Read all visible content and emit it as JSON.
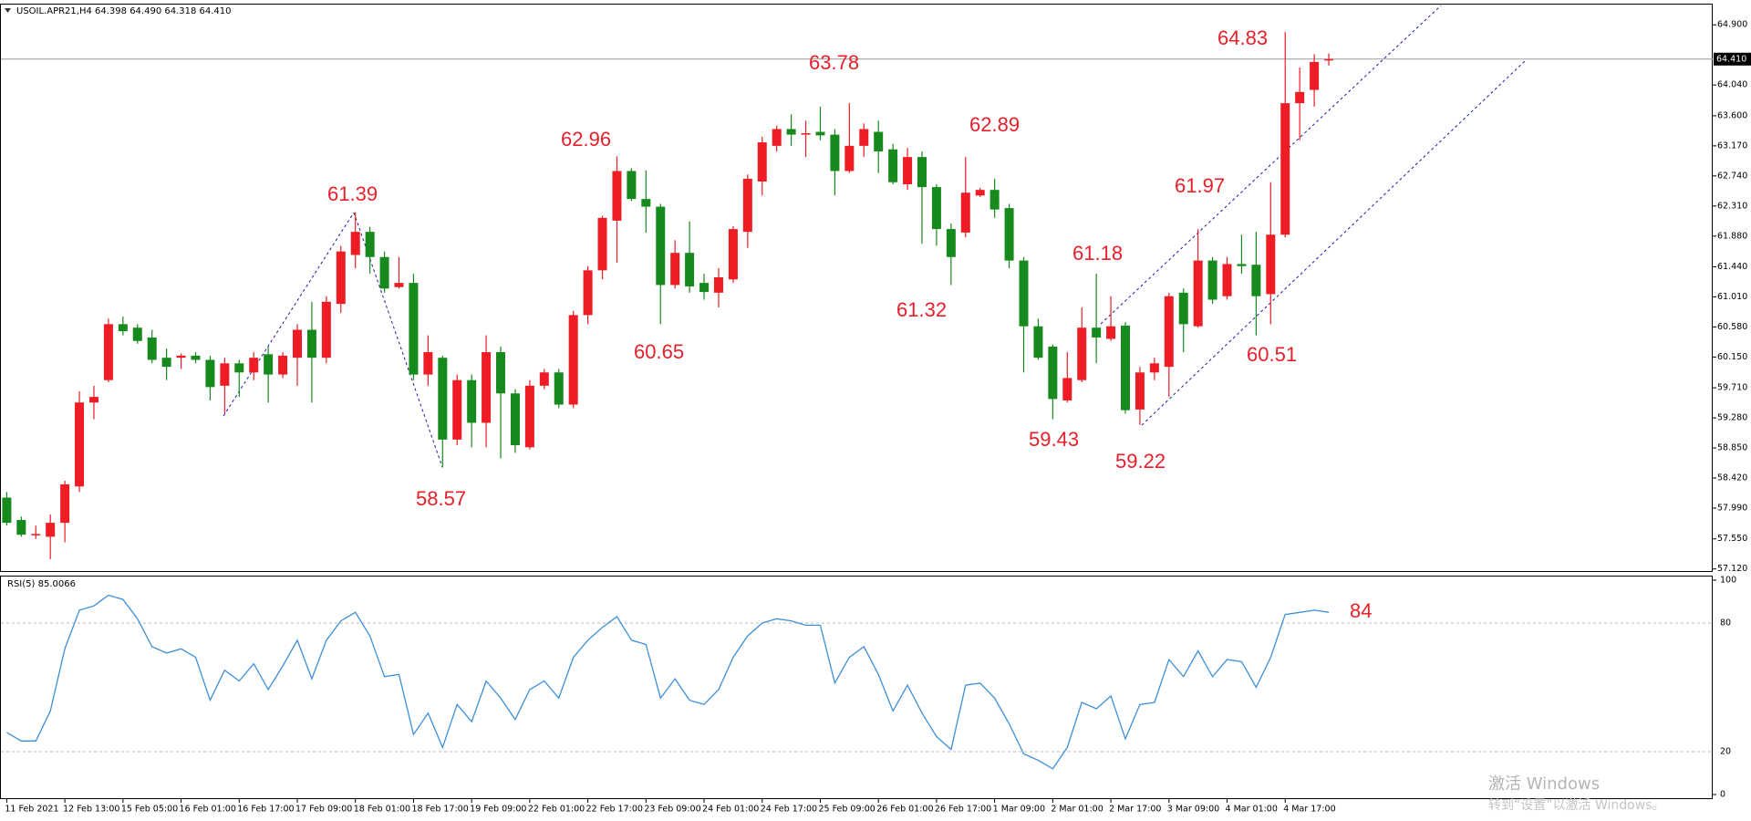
{
  "chart_data": [
    {
      "type": "candlestick",
      "title": "USOIL.APR21,H4  64.398 64.490 64.318 64.410",
      "categories": [
        "11 Feb 2021",
        null,
        null,
        null,
        "12 Feb 13:00",
        null,
        null,
        null,
        "15 Feb 05:00",
        null,
        null,
        null,
        "16 Feb 01:00",
        null,
        null,
        null,
        "16 Feb 17:00",
        null,
        null,
        null,
        "17 Feb 09:00",
        null,
        null,
        null,
        "18 Feb 01:00",
        null,
        null,
        null,
        "18 Feb 17:00",
        null,
        null,
        null,
        "19 Feb 09:00",
        null,
        null,
        null,
        "22 Feb 01:00",
        null,
        null,
        null,
        "22 Feb 17:00",
        null,
        null,
        null,
        "23 Feb 09:00",
        null,
        null,
        null,
        "24 Feb 01:00",
        null,
        null,
        null,
        "24 Feb 17:00",
        null,
        null,
        null,
        "25 Feb 09:00",
        null,
        null,
        null,
        "26 Feb 01:00",
        null,
        null,
        null,
        "26 Feb 17:00",
        null,
        null,
        null,
        "1 Mar 09:00",
        null,
        null,
        null,
        "2 Mar 01:00",
        null,
        null,
        null,
        "2 Mar 17:00",
        null,
        null,
        null,
        "3 Mar 09:00",
        null,
        null,
        null,
        "4 Mar 01:00",
        null,
        null,
        null,
        "4 Mar 17:00",
        null,
        null,
        null
      ],
      "open": [
        58.14,
        57.82,
        57.61,
        57.58,
        57.78,
        58.3,
        59.5,
        59.82,
        60.62,
        60.57,
        60.43,
        60.14,
        60.14,
        60.17,
        60.11,
        59.74,
        60.06,
        59.93,
        60.19,
        59.9,
        60.14,
        60.54,
        60.14,
        60.91,
        61.61,
        61.94,
        61.58,
        61.15,
        61.21,
        59.9,
        60.14,
        58.97,
        59.82,
        59.21,
        60.22,
        59.63,
        58.86,
        59.74,
        59.93,
        59.47,
        60.75,
        61.39,
        62.1,
        62.81,
        62.41,
        62.3,
        61.18,
        61.64,
        61.21,
        61.07,
        61.26,
        61.94,
        62.66,
        63.17,
        63.41,
        63.33,
        63.37,
        63.33,
        62.81,
        63.17,
        63.37,
        63.12,
        62.62,
        63.01,
        62.58,
        61.98,
        61.93,
        62.46,
        62.54,
        62.28,
        61.53,
        60.59,
        60.3,
        59.53,
        59.82,
        60.57,
        60.41,
        60.6,
        59.4,
        59.93,
        60.01,
        61.07,
        60.59,
        61.53,
        61.02,
        61.48,
        61.47,
        61.05,
        61.9,
        63.78,
        63.97,
        64.398
      ],
      "high": [
        58.22,
        57.87,
        57.74,
        57.9,
        58.38,
        59.66,
        59.74,
        60.7,
        60.73,
        60.62,
        60.54,
        60.27,
        60.2,
        60.22,
        60.17,
        60.14,
        60.11,
        60.22,
        60.3,
        60.22,
        60.62,
        60.94,
        61.02,
        61.74,
        62.22,
        62.01,
        61.66,
        61.58,
        61.34,
        60.46,
        60.17,
        59.9,
        59.9,
        60.46,
        60.3,
        59.69,
        59.82,
        59.98,
        59.98,
        60.81,
        61.45,
        62.17,
        63.02,
        62.85,
        62.82,
        62.34,
        61.82,
        62.09,
        61.34,
        61.42,
        62.02,
        62.76,
        63.3,
        63.46,
        63.62,
        63.53,
        63.73,
        63.41,
        63.78,
        63.49,
        63.53,
        63.2,
        63.14,
        63.09,
        62.62,
        62.06,
        63.01,
        62.57,
        62.7,
        62.34,
        61.58,
        60.7,
        60.33,
        60.22,
        60.86,
        61.34,
        61.02,
        60.65,
        60.01,
        60.14,
        61.07,
        61.13,
        61.98,
        61.58,
        61.58,
        61.9,
        61.94,
        62.65,
        64.8,
        64.29,
        64.48,
        64.49
      ],
      "low": [
        57.74,
        57.58,
        57.55,
        57.26,
        57.5,
        58.22,
        59.26,
        59.79,
        60.46,
        60.34,
        60.06,
        59.82,
        59.98,
        60.06,
        59.53,
        59.34,
        59.58,
        59.82,
        59.5,
        59.85,
        59.74,
        59.5,
        60.06,
        60.78,
        61.42,
        61.34,
        61.07,
        61.13,
        59.82,
        59.74,
        58.57,
        58.89,
        58.86,
        58.86,
        58.7,
        58.78,
        58.83,
        59.69,
        59.42,
        59.42,
        60.62,
        61.26,
        61.5,
        62.38,
        61.93,
        60.62,
        61.13,
        61.07,
        60.97,
        60.86,
        61.21,
        61.71,
        62.46,
        63.09,
        63.17,
        63.01,
        63.25,
        62.46,
        62.78,
        63.01,
        62.78,
        62.62,
        62.54,
        61.77,
        61.74,
        61.18,
        61.86,
        62.44,
        62.14,
        61.42,
        59.93,
        60.11,
        59.26,
        59.5,
        59.79,
        60.06,
        60.38,
        59.34,
        59.18,
        59.82,
        59.58,
        60.22,
        60.57,
        60.91,
        60.97,
        61.34,
        60.46,
        60.62,
        61.86,
        63.25,
        63.73,
        64.318
      ],
      "close": [
        57.78,
        57.61,
        57.62,
        57.78,
        58.33,
        59.5,
        59.58,
        60.62,
        60.52,
        60.38,
        60.11,
        60.01,
        60.17,
        60.11,
        59.72,
        60.06,
        59.93,
        60.14,
        59.9,
        60.17,
        60.54,
        60.14,
        60.94,
        61.66,
        61.94,
        61.58,
        61.13,
        61.21,
        59.9,
        60.22,
        58.97,
        59.82,
        59.21,
        60.22,
        59.63,
        58.89,
        59.74,
        59.93,
        59.47,
        60.75,
        61.39,
        62.14,
        62.81,
        62.41,
        62.3,
        61.18,
        61.64,
        61.16,
        61.08,
        61.29,
        61.98,
        62.7,
        63.22,
        63.41,
        63.33,
        63.35,
        63.32,
        62.81,
        63.17,
        63.41,
        63.09,
        62.65,
        63.01,
        62.58,
        61.98,
        61.58,
        62.5,
        62.54,
        62.26,
        61.53,
        60.59,
        60.14,
        59.55,
        59.85,
        60.57,
        60.43,
        60.59,
        59.39,
        59.93,
        60.06,
        61.02,
        60.62,
        61.53,
        60.97,
        61.48,
        61.45,
        61.02,
        61.9,
        63.78,
        63.94,
        64.37,
        64.41
      ],
      "up_color": "#ee1c24",
      "down_color": "#168a1c",
      "ylim": [
        57.09,
        65.19
      ],
      "yticks": [
        {
          "value": 57.12,
          "label": "57.120"
        },
        {
          "value": 57.55,
          "label": "57.550"
        },
        {
          "value": 57.99,
          "label": "57.990"
        },
        {
          "value": 58.42,
          "label": "58.420"
        },
        {
          "value": 58.85,
          "label": "58.850"
        },
        {
          "value": 59.28,
          "label": "59.280"
        },
        {
          "value": 59.71,
          "label": "59.710"
        },
        {
          "value": 60.15,
          "label": "60.150"
        },
        {
          "value": 60.58,
          "label": "60.580"
        },
        {
          "value": 61.01,
          "label": "61.010"
        },
        {
          "value": 61.44,
          "label": "61.440"
        },
        {
          "value": 61.88,
          "label": "61.880"
        },
        {
          "value": 62.31,
          "label": "62.310"
        },
        {
          "value": 62.74,
          "label": "62.740"
        },
        {
          "value": 63.17,
          "label": "63.170"
        },
        {
          "value": 63.6,
          "label": "63.600"
        },
        {
          "value": 64.04,
          "label": "64.040"
        },
        {
          "value": 64.9,
          "label": "64.900"
        }
      ],
      "current_price": {
        "value": 64.41,
        "label": "64.410"
      },
      "annotations": [
        "64.83",
        "63.78",
        "62.96",
        "62.89",
        "61.39",
        "61.97",
        "61.18",
        "61.32",
        "60.65",
        "60.51",
        "59.43",
        "59.22",
        "58.57"
      ]
    },
    {
      "type": "line",
      "title": "RSI(5) 85.0066",
      "values": [
        29,
        25,
        25,
        39,
        68,
        86,
        88,
        93,
        91,
        82,
        69,
        66,
        68,
        64,
        44,
        58,
        53,
        61,
        49,
        60,
        72,
        54,
        72,
        81,
        85,
        74,
        55,
        56,
        28,
        38,
        22,
        42,
        34,
        53,
        45,
        35,
        49,
        53,
        45,
        64,
        72,
        78,
        83,
        72,
        70,
        45,
        54,
        44,
        42,
        49,
        64,
        74,
        80,
        82,
        81,
        79,
        79,
        52,
        64,
        69,
        56,
        39,
        51,
        38,
        27,
        21,
        51,
        52,
        45,
        33,
        19,
        16,
        12,
        22,
        43,
        40,
        46,
        26,
        42,
        43,
        63,
        55,
        67,
        55,
        63,
        62,
        50,
        64,
        84,
        85,
        86,
        85.0066
      ],
      "color": "#3d8fd8",
      "ylim": [
        0,
        100
      ],
      "yticks": [
        0,
        20,
        80,
        100
      ],
      "annotations": [
        "84"
      ]
    }
  ],
  "watermark": [
    "激活 Windows",
    "转到“设置”以激活 Windows。"
  ]
}
